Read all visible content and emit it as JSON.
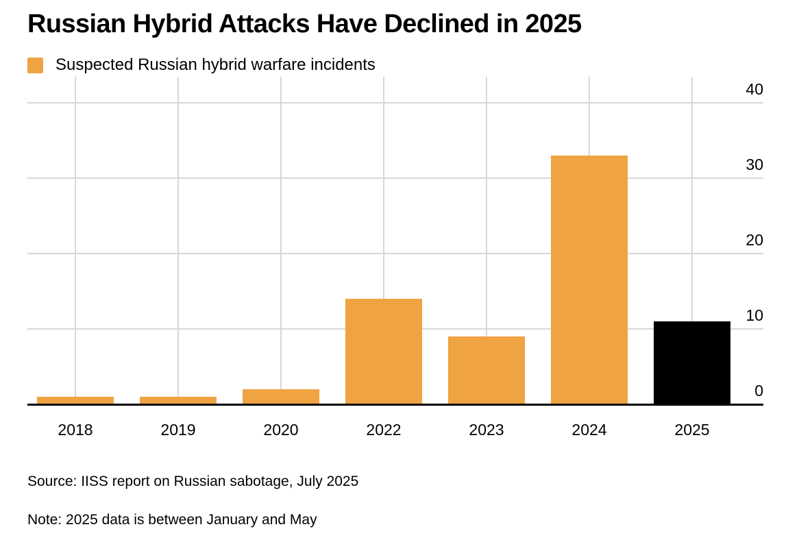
{
  "page": {
    "title": "Russian Hybrid Attacks Have Declined in 2025",
    "source_line": "Source: IISS report on Russian sabotage, July 2025",
    "note_line": "Note: 2025 data is between January and May"
  },
  "legend": {
    "label": "Suspected Russian hybrid warfare incidents",
    "swatch_color": "#EFA342"
  },
  "colors": {
    "bar_default": "#EFA342",
    "bar_highlight": "#000000",
    "gridline": "#D7D7D7",
    "axis_line": "#000000",
    "background": "#FFFFFF",
    "text": "#000000"
  },
  "chart_data": {
    "type": "bar",
    "title": "Russian Hybrid Attacks Have Declined in 2025",
    "categories": [
      "2018",
      "2019",
      "2020",
      "2022",
      "2023",
      "2024",
      "2025"
    ],
    "values": [
      1,
      1,
      2,
      14,
      9,
      33,
      11
    ],
    "series": [
      {
        "name": "Suspected Russian hybrid warfare incidents",
        "values": [
          1,
          1,
          2,
          14,
          9,
          33,
          11
        ]
      }
    ],
    "bar_colors": [
      "#EFA342",
      "#EFA342",
      "#EFA342",
      "#EFA342",
      "#EFA342",
      "#EFA342",
      "#000000"
    ],
    "xlabel": "",
    "ylabel": "",
    "ylim": [
      0,
      43
    ],
    "yticks": [
      0,
      10,
      20,
      30,
      40
    ],
    "ytick_side": "right",
    "grid": {
      "horizontal": true,
      "vertical_at_category_centers": true
    },
    "legend_position": "top-left",
    "highlight_note": "2025 bar shown in black; 2021 omitted from axis"
  }
}
